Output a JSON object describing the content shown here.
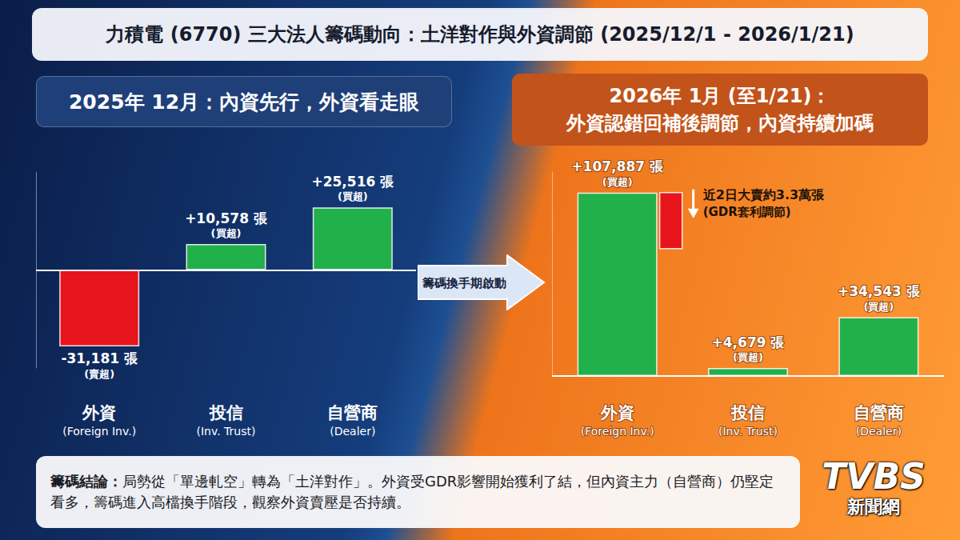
{
  "title": "力積電 (6770) 三大法人籌碼動向：土洋對作與外資調節 (2025/12/1 - 2026/1/21)",
  "transition_label": "籌碼換手期啟動",
  "conclusion": {
    "label": "籌碼結論：",
    "text": "局勢從「單邊軋空」轉為「土洋對作」。外資受GDR影響開始獲利了結，但內資主力（自營商）仍堅定看多，籌碼進入高檔換手階段，觀察外資賣壓是否持續。"
  },
  "logo": {
    "name": "TVBS",
    "subtitle": "新聞網"
  },
  "chart_data": [
    {
      "type": "bar",
      "title": [
        "2025年 12月：內資先行，外資看走眼"
      ],
      "categories": [
        "外資",
        "投信",
        "自營商"
      ],
      "category_notes": [
        "(Foreign Inv.)",
        "(Inv. Trust)",
        "(Dealer)"
      ],
      "values": [
        -31181,
        10578,
        25516
      ],
      "value_labels": [
        "-31,181 張",
        "+10,578 張",
        "+25,516 張"
      ],
      "label_notes": [
        "(賣超)",
        "(買超)",
        "(買超)"
      ],
      "colors": [
        "#e8141c",
        "#22b04b",
        "#22b04b"
      ],
      "ylim": [
        -40000,
        40000
      ],
      "data_labels": true,
      "tick_labels": "x",
      "grid": false
    },
    {
      "type": "bar",
      "title": [
        "2026年 1月 (至1/21)：",
        "外資認錯回補後調節，內資持續加碼"
      ],
      "categories": [
        "外資",
        "投信",
        "自營商"
      ],
      "category_notes": [
        "(Foreign Inv.)",
        "(Inv. Trust)",
        "(Dealer)"
      ],
      "values": [
        107887,
        4679,
        34543
      ],
      "value_labels": [
        "+107,887 張",
        "+4,679 張",
        "+34,543 張"
      ],
      "label_notes": [
        "(買超)",
        "(買超)",
        "(買超)"
      ],
      "colors": [
        "#22b04b",
        "#22b04b",
        "#22b04b"
      ],
      "ylim": [
        0,
        120000
      ],
      "data_labels": true,
      "tick_labels": "x",
      "grid": false,
      "annotation": {
        "category": "外資",
        "sell": 33000,
        "text": "近2日大賣約3.3萬張",
        "note": "(GDR套利調節)",
        "color": "#e8141c"
      }
    }
  ]
}
